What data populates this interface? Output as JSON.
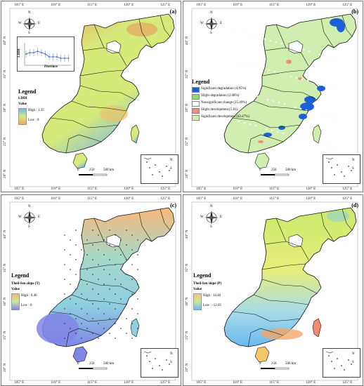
{
  "axes": {
    "lon_ticks": [
      "105° E",
      "110° E",
      "115° E",
      "120° E",
      "125° E"
    ],
    "lat_ticks": [
      "40° N",
      "35° N",
      "30° N",
      "25° N",
      "20° N"
    ]
  },
  "compass": {
    "n": "N",
    "s": "S",
    "e": "E",
    "w": "W"
  },
  "scalebar": {
    "zero": "0",
    "mid": "250",
    "end": "500 km"
  },
  "inset_labels": {
    "n": "N",
    "s": "S"
  },
  "colors": {
    "a_high": "#7ab8e8",
    "a_mid": "#d6ea7a",
    "a_low": "#f0a45a",
    "b_sig_deg": "#1c5fd6",
    "b_slight_deg": "#88e06a",
    "b_nonsig": "#f7f7f7",
    "b_slight_dev": "#f08a84",
    "b_sig_dev": "#cfeeb0",
    "c_high": "#f7b87a",
    "c_low": "#7f86e6",
    "d_high": "#f7c76a",
    "d_low": "#6ab9f0"
  },
  "panels": {
    "a": {
      "label": "(a)",
      "legend_title": "Legend",
      "legend_sub": "LDDI",
      "value_label": "Value",
      "high": "High : 1.35",
      "low": "Low : 0",
      "inset_ylabel": "LDDI",
      "inset_xlabel": "Province"
    },
    "b": {
      "label": "(b)",
      "legend_title": "Legend",
      "items": [
        "Significant degradation (4.95%)",
        "Slight degradation (2.08%)",
        "Nonsignificant change (25.49%)",
        "Slight development (5.01)",
        "Significant development (62.47%)"
      ]
    },
    "c": {
      "label": "(c)",
      "legend_title": "Legend",
      "legend_sub": "Theil-Sen slope (T)",
      "value_label": "Value",
      "high": "High : 0.46",
      "low": "Low : 0"
    },
    "d": {
      "label": "(d)",
      "legend_title": "Legend",
      "legend_sub": "Theil-Sen slope (P)",
      "value_label": "Value",
      "high": "High : 14.46",
      "low": "Low : -12.05"
    }
  }
}
